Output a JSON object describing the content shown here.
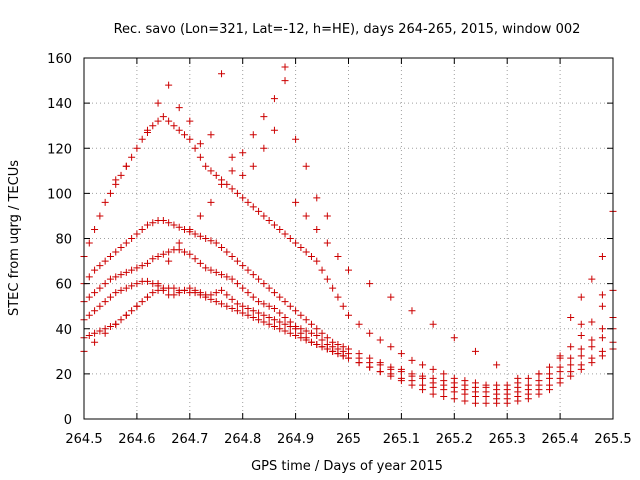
{
  "chart_data": {
    "type": "scatter",
    "title": "Rec. savo (Lon=321, Lat=-12, h=HE), days 264-265, 2015, window 002",
    "xlabel": "GPS time / Days of year 2015",
    "ylabel": "STEC from uqrg / TECUs",
    "xlim": [
      264.5,
      265.5
    ],
    "ylim": [
      0,
      160
    ],
    "xticks": [
      "264.5",
      "264.6",
      "264.7",
      "264.8",
      "264.9",
      "265",
      "265.1",
      "265.2",
      "265.3",
      "265.4",
      "265.5"
    ],
    "yticks": [
      "0",
      "20",
      "40",
      "60",
      "80",
      "100",
      "120",
      "140",
      "160"
    ],
    "grid": true,
    "legend": "none",
    "marker": "+",
    "color": "#cc0000",
    "series": [
      {
        "x": [
          264.5,
          264.51,
          264.52,
          264.53,
          264.54,
          264.55,
          264.56,
          264.57,
          264.58,
          264.59,
          264.6,
          264.61,
          264.62,
          264.63,
          264.64,
          264.65,
          264.66,
          264.67,
          264.68,
          264.69,
          264.7,
          264.71,
          264.72,
          264.73,
          264.74,
          264.75,
          264.76,
          264.77,
          264.78,
          264.79,
          264.8,
          264.81,
          264.82,
          264.83,
          264.84,
          264.85,
          264.86,
          264.87,
          264.88,
          264.89,
          264.9,
          264.91,
          264.92,
          264.93,
          264.94,
          264.95,
          264.96,
          264.97,
          264.98,
          264.99,
          265.0,
          265.02,
          265.04,
          265.06,
          265.08,
          265.1,
          265.12,
          265.14,
          265.16,
          265.18,
          265.2,
          265.22,
          265.24,
          265.26,
          265.28,
          265.3,
          265.32,
          265.34,
          265.36,
          265.38,
          265.4,
          265.42,
          265.44,
          265.46,
          265.48,
          265.5
        ],
        "y": [
          36,
          37,
          38,
          39,
          40,
          41,
          42,
          44,
          46,
          48,
          50,
          52,
          54,
          56,
          57,
          58,
          58,
          58,
          57,
          57,
          56,
          56,
          55,
          54,
          53,
          52,
          51,
          50,
          49,
          48,
          47,
          46,
          45,
          44,
          43,
          42,
          41,
          40,
          39,
          38,
          37,
          36,
          35,
          34,
          33,
          32,
          31,
          30,
          29,
          28,
          27,
          25,
          23,
          21,
          19,
          17,
          15,
          13,
          11,
          10,
          9,
          8,
          7,
          7,
          7,
          7,
          8,
          9,
          11,
          13,
          16,
          19,
          22,
          25,
          28,
          31
        ]
      },
      {
        "x": [
          264.5,
          264.51,
          264.52,
          264.53,
          264.54,
          264.55,
          264.56,
          264.57,
          264.58,
          264.59,
          264.6,
          264.61,
          264.62,
          264.63,
          264.64,
          264.65,
          264.66,
          264.67,
          264.68,
          264.69,
          264.7,
          264.71,
          264.72,
          264.73,
          264.74,
          264.75,
          264.76,
          264.77,
          264.78,
          264.79,
          264.8,
          264.81,
          264.82,
          264.83,
          264.84,
          264.85,
          264.86,
          264.87,
          264.88,
          264.89,
          264.9,
          264.91,
          264.92,
          264.93,
          264.94,
          264.95,
          264.96,
          264.97,
          264.98,
          264.99,
          265.0,
          265.02,
          265.04,
          265.06,
          265.08,
          265.1,
          265.12,
          265.14,
          265.16,
          265.18,
          265.2,
          265.22,
          265.24,
          265.26,
          265.28,
          265.3,
          265.32,
          265.34,
          265.36,
          265.38,
          265.4,
          265.42,
          265.44,
          265.46,
          265.48,
          265.5
        ],
        "y": [
          44,
          46,
          48,
          50,
          52,
          54,
          56,
          57,
          58,
          59,
          60,
          61,
          61,
          60,
          59,
          57,
          55,
          55,
          56,
          57,
          58,
          57,
          56,
          55,
          55,
          56,
          57,
          55,
          53,
          51,
          50,
          49,
          48,
          47,
          46,
          45,
          44,
          43,
          42,
          41,
          40,
          38,
          36,
          34,
          33,
          32,
          31,
          30,
          29,
          28,
          27,
          25,
          23,
          21,
          20,
          18,
          17,
          15,
          14,
          13,
          12,
          11,
          10,
          10,
          9,
          9,
          10,
          11,
          13,
          15,
          18,
          21,
          24,
          27,
          30,
          34
        ]
      },
      {
        "x": [
          264.5,
          264.51,
          264.52,
          264.53,
          264.54,
          264.55,
          264.56,
          264.57,
          264.58,
          264.59,
          264.6,
          264.61,
          264.62,
          264.63,
          264.64,
          264.65,
          264.66,
          264.67,
          264.68,
          264.69,
          264.7,
          264.71,
          264.72,
          264.73,
          264.74,
          264.75,
          264.76,
          264.77,
          264.78,
          264.79,
          264.8,
          264.81,
          264.82,
          264.83,
          264.84,
          264.85,
          264.86,
          264.87,
          264.88,
          264.89,
          264.9,
          264.91,
          264.92,
          264.93,
          264.94,
          264.95,
          264.96,
          264.97,
          264.98,
          264.99,
          265.0,
          265.02,
          265.04,
          265.06,
          265.08,
          265.1,
          265.12,
          265.14,
          265.16,
          265.18,
          265.2,
          265.22,
          265.24,
          265.26,
          265.28,
          265.3,
          265.32,
          265.34,
          265.36,
          265.38,
          265.4,
          265.42,
          265.44,
          265.46,
          265.48,
          265.5
        ],
        "y": [
          52,
          54,
          56,
          58,
          60,
          62,
          63,
          64,
          65,
          66,
          67,
          68,
          69,
          71,
          72,
          73,
          74,
          75,
          75,
          74,
          73,
          71,
          69,
          67,
          66,
          65,
          64,
          63,
          62,
          60,
          58,
          56,
          54,
          52,
          51,
          50,
          49,
          47,
          45,
          43,
          41,
          40,
          39,
          38,
          37,
          35,
          33,
          32,
          31,
          30,
          29,
          27,
          25,
          24,
          22,
          21,
          19,
          18,
          16,
          15,
          14,
          13,
          12,
          12,
          11,
          11,
          12,
          13,
          15,
          18,
          21,
          24,
          28,
          32,
          36,
          40
        ]
      },
      {
        "x": [
          264.5,
          264.51,
          264.52,
          264.53,
          264.54,
          264.55,
          264.56,
          264.57,
          264.58,
          264.59,
          264.6,
          264.61,
          264.62,
          264.63,
          264.64,
          264.65,
          264.66,
          264.67,
          264.68,
          264.69,
          264.7,
          264.71,
          264.72,
          264.73,
          264.74,
          264.75,
          264.76,
          264.77,
          264.78,
          264.79,
          264.8,
          264.81,
          264.82,
          264.83,
          264.84,
          264.85,
          264.86,
          264.87,
          264.88,
          264.89,
          264.9,
          264.91,
          264.92,
          264.93,
          264.94,
          264.95,
          264.96,
          264.97,
          264.98,
          264.99,
          265.0,
          265.02,
          265.04,
          265.06,
          265.08,
          265.1,
          265.12,
          265.14,
          265.16,
          265.18,
          265.2,
          265.22,
          265.24,
          265.26,
          265.28,
          265.3,
          265.32,
          265.34,
          265.36,
          265.38,
          265.4,
          265.42,
          265.44,
          265.46,
          265.48,
          265.5
        ],
        "y": [
          60,
          63,
          66,
          68,
          70,
          72,
          74,
          76,
          78,
          80,
          82,
          84,
          86,
          87,
          88,
          88,
          87,
          86,
          85,
          84,
          83,
          82,
          81,
          80,
          79,
          78,
          76,
          74,
          72,
          70,
          68,
          66,
          64,
          62,
          60,
          58,
          56,
          54,
          52,
          50,
          48,
          46,
          44,
          42,
          40,
          38,
          36,
          34,
          33,
          32,
          31,
          29,
          27,
          25,
          23,
          22,
          20,
          19,
          18,
          17,
          16,
          15,
          14,
          14,
          13,
          13,
          14,
          15,
          17,
          20,
          23,
          27,
          31,
          35,
          40,
          45
        ]
      },
      {
        "x": [
          264.5,
          264.51,
          264.52,
          264.53,
          264.54,
          264.55,
          264.56,
          264.57,
          264.58,
          264.59,
          264.6,
          264.61,
          264.62,
          264.63,
          264.64,
          264.65,
          264.66,
          264.67,
          264.68,
          264.69,
          264.7,
          264.71,
          264.72,
          264.73,
          264.74,
          264.75,
          264.76,
          264.77,
          264.78,
          264.79,
          264.8,
          264.81,
          264.82,
          264.83,
          264.84,
          264.85,
          264.86,
          264.87,
          264.88,
          264.89,
          264.9,
          264.91,
          264.92,
          264.93,
          264.94,
          264.95,
          264.96,
          264.97,
          264.98,
          264.99,
          265.0,
          265.02,
          265.04,
          265.06,
          265.08,
          265.1,
          265.12,
          265.14,
          265.16,
          265.18,
          265.2,
          265.22,
          265.24,
          265.26,
          265.28,
          265.3,
          265.32,
          265.34,
          265.36,
          265.38,
          265.4,
          265.42,
          265.44,
          265.46,
          265.48,
          265.5
        ],
        "y": [
          72,
          78,
          84,
          90,
          96,
          100,
          104,
          108,
          112,
          116,
          120,
          124,
          127,
          130,
          132,
          134,
          132,
          130,
          128,
          126,
          124,
          120,
          116,
          112,
          110,
          108,
          106,
          104,
          102,
          100,
          98,
          96,
          94,
          92,
          90,
          88,
          86,
          84,
          82,
          80,
          78,
          76,
          74,
          72,
          70,
          66,
          62,
          58,
          54,
          50,
          46,
          42,
          38,
          35,
          32,
          29,
          26,
          24,
          22,
          20,
          18,
          17,
          16,
          15,
          15,
          15,
          16,
          18,
          20,
          23,
          27,
          32,
          37,
          43,
          50,
          57
        ]
      },
      {
        "x": [
          264.5,
          264.52,
          264.54,
          264.56,
          264.58,
          264.6,
          264.62,
          264.64,
          264.66,
          264.68,
          264.7,
          264.72,
          264.74,
          264.76,
          264.78,
          264.8,
          264.82,
          264.84,
          264.86,
          264.88,
          264.9,
          264.92,
          264.94,
          264.96,
          264.98,
          265.0,
          265.04,
          265.08,
          265.12,
          265.16,
          265.2,
          265.24,
          265.28,
          265.32,
          265.36,
          265.4,
          265.44,
          265.48
        ],
        "y": [
          30,
          34,
          38,
          42,
          46,
          50,
          54,
          60,
          70,
          78,
          84,
          90,
          96,
          104,
          110,
          118,
          126,
          134,
          142,
          150,
          96,
          90,
          84,
          78,
          72,
          66,
          60,
          54,
          48,
          42,
          36,
          30,
          24,
          18,
          20,
          28,
          42,
          55
        ]
      },
      {
        "x": [
          264.56,
          264.58,
          264.62,
          264.64,
          264.66,
          264.68,
          264.7,
          264.72,
          264.74,
          264.76,
          264.78,
          264.8,
          264.82,
          264.84,
          264.86,
          264.88,
          264.9,
          264.92,
          264.94,
          264.96,
          265.42,
          265.44,
          265.46,
          265.48,
          265.5
        ],
        "y": [
          106,
          112,
          128,
          140,
          148,
          138,
          132,
          122,
          126,
          153,
          116,
          108,
          112,
          120,
          128,
          156,
          124,
          112,
          98,
          90,
          45,
          54,
          62,
          72,
          92
        ]
      }
    ]
  }
}
